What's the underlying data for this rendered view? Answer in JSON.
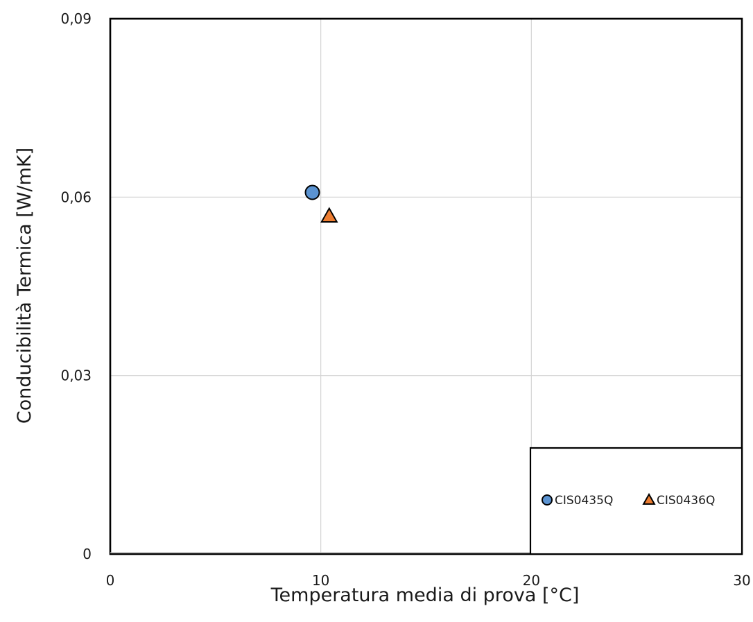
{
  "chart_data": {
    "type": "scatter",
    "xlabel": "Temperatura media di prova [°C]",
    "ylabel": "Conducibilità Termica [W/mK]",
    "xlim": [
      0,
      30
    ],
    "ylim": [
      0,
      0.09
    ],
    "x_ticks": [
      0,
      10,
      20,
      30
    ],
    "x_tick_labels": [
      "0",
      "10",
      "20",
      "30"
    ],
    "y_ticks": [
      0,
      0.03,
      0.06,
      0.09
    ],
    "y_tick_labels": [
      "0",
      "0,03",
      "0,06",
      "0,09"
    ],
    "grid": true,
    "legend_position": "bottom-right",
    "series": [
      {
        "name": "CIS0435Q",
        "marker": "circle",
        "color": "#5b93d1",
        "points": [
          {
            "x": 9.6,
            "y": 0.0608
          }
        ]
      },
      {
        "name": "CIS0436Q",
        "marker": "triangle",
        "color": "#ed7d31",
        "points": [
          {
            "x": 10.4,
            "y": 0.0568
          }
        ]
      }
    ]
  }
}
